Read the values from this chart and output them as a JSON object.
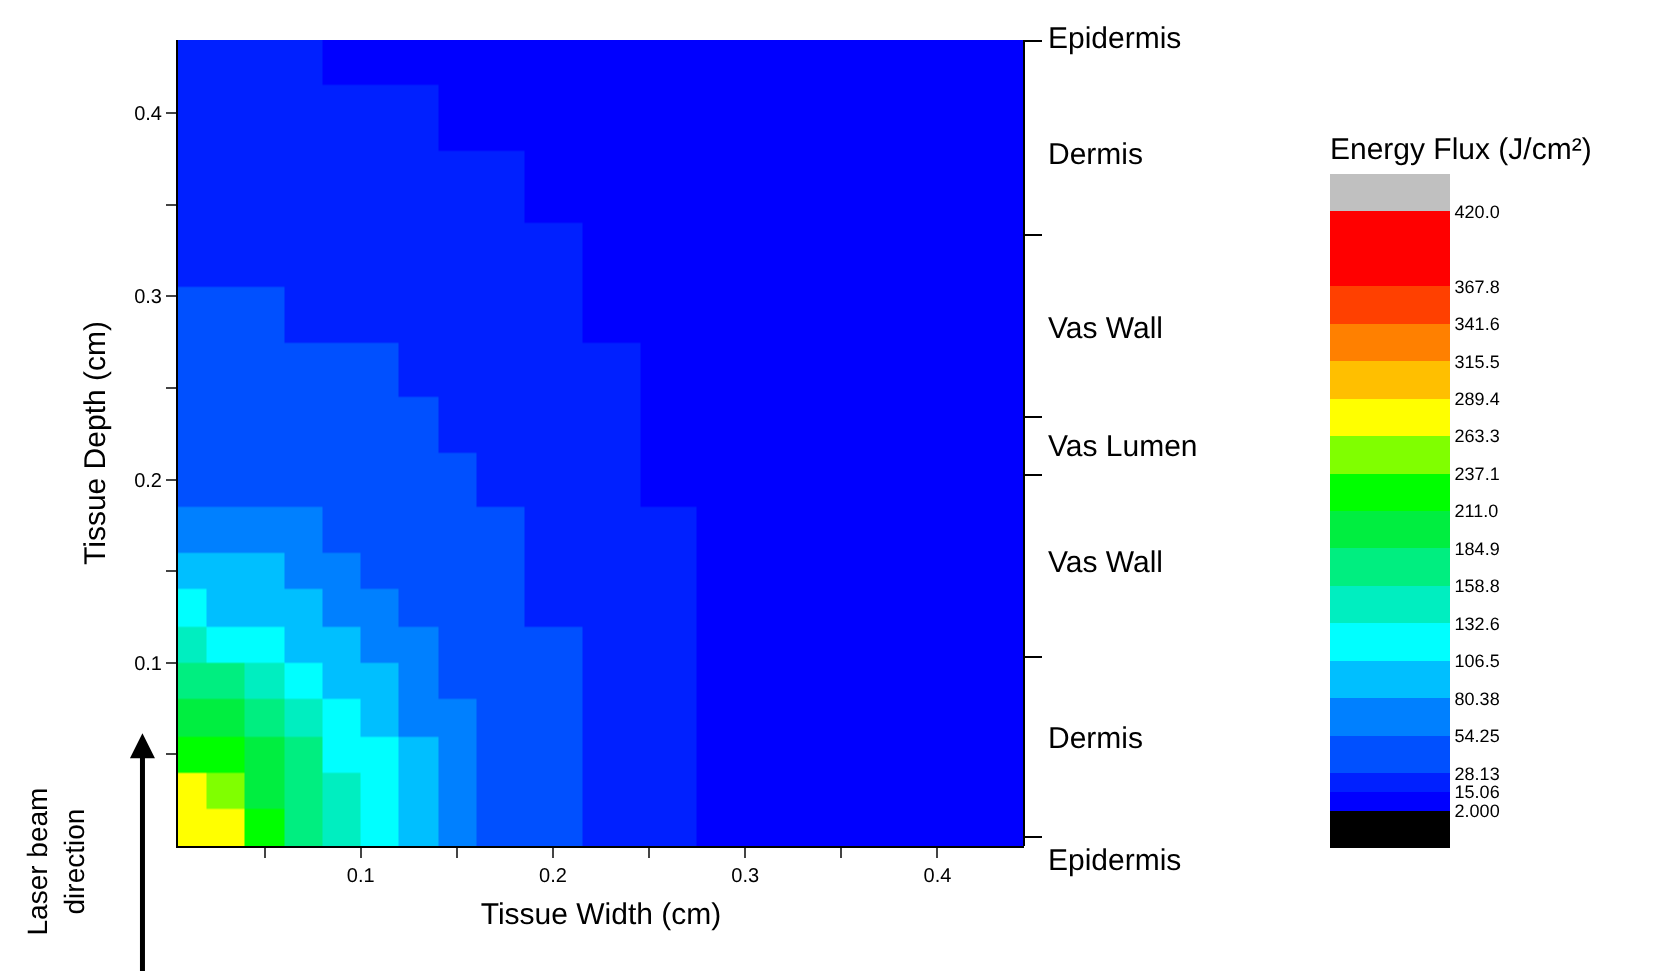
{
  "chart_data": {
    "type": "heatmap",
    "xlabel": "Tissue Width (cm)",
    "ylabel": "Tissue Depth (cm)",
    "clabel": "Energy Flux (J/cm²)",
    "x": [
      0.01,
      0.03,
      0.05,
      0.07,
      0.09,
      0.11,
      0.13,
      0.15,
      0.17,
      0.2,
      0.23,
      0.26,
      0.29,
      0.33,
      0.38,
      0.43
    ],
    "y": [
      0.43,
      0.4,
      0.36,
      0.32,
      0.29,
      0.26,
      0.23,
      0.2,
      0.17,
      0.15,
      0.13,
      0.11,
      0.09,
      0.07,
      0.05,
      0.03,
      0.01
    ],
    "cells": [
      [
        21,
        21,
        21,
        21,
        8,
        8,
        8,
        8,
        8,
        8,
        8,
        8,
        8,
        8,
        8,
        8
      ],
      [
        21,
        21,
        21,
        21,
        21,
        21,
        21,
        8,
        8,
        8,
        8,
        8,
        8,
        8,
        8,
        8
      ],
      [
        21,
        21,
        21,
        21,
        21,
        21,
        21,
        21,
        21,
        8,
        8,
        8,
        8,
        8,
        8,
        8
      ],
      [
        21,
        21,
        21,
        21,
        21,
        21,
        21,
        21,
        21,
        21,
        8,
        8,
        8,
        8,
        8,
        8
      ],
      [
        41,
        41,
        41,
        21,
        21,
        21,
        21,
        21,
        21,
        21,
        8,
        8,
        8,
        8,
        8,
        8
      ],
      [
        41,
        41,
        41,
        41,
        41,
        41,
        21,
        21,
        21,
        21,
        21,
        8,
        8,
        8,
        8,
        8
      ],
      [
        41,
        41,
        41,
        41,
        41,
        41,
        41,
        21,
        21,
        21,
        21,
        8,
        8,
        8,
        8,
        8
      ],
      [
        41,
        41,
        41,
        41,
        41,
        41,
        41,
        41,
        21,
        21,
        21,
        8,
        8,
        8,
        8,
        8
      ],
      [
        67,
        67,
        67,
        67,
        41,
        41,
        41,
        41,
        41,
        21,
        21,
        21,
        8,
        8,
        8,
        8
      ],
      [
        93,
        93,
        93,
        67,
        67,
        41,
        41,
        41,
        41,
        21,
        21,
        21,
        8,
        8,
        8,
        8
      ],
      [
        120,
        93,
        93,
        93,
        67,
        67,
        41,
        41,
        41,
        21,
        21,
        21,
        8,
        8,
        8,
        8
      ],
      [
        146,
        120,
        120,
        93,
        93,
        67,
        67,
        41,
        41,
        41,
        21,
        21,
        8,
        8,
        8,
        8
      ],
      [
        172,
        172,
        146,
        120,
        93,
        93,
        67,
        41,
        41,
        41,
        21,
        21,
        8,
        8,
        8,
        8
      ],
      [
        198,
        198,
        172,
        146,
        120,
        93,
        67,
        67,
        41,
        41,
        21,
        21,
        8,
        8,
        8,
        8
      ],
      [
        224,
        224,
        198,
        172,
        120,
        120,
        93,
        67,
        41,
        41,
        21,
        21,
        8,
        8,
        8,
        8
      ],
      [
        276,
        250,
        198,
        172,
        146,
        120,
        93,
        67,
        41,
        41,
        21,
        21,
        8,
        8,
        8,
        8
      ],
      [
        276,
        276,
        224,
        172,
        146,
        120,
        93,
        67,
        41,
        41,
        21,
        21,
        8,
        8,
        8,
        8
      ]
    ],
    "xlim": [
      0.005,
      0.445
    ],
    "xticks": [
      {
        "value": 0.05,
        "label": null
      },
      0.1,
      {
        "value": 0.15,
        "label": null
      },
      0.2,
      {
        "value": 0.25,
        "label": null
      },
      0.3,
      {
        "value": 0.35,
        "label": null
      },
      0.4
    ],
    "ylim": [
      0,
      0.44
    ],
    "yticks": [
      {
        "value": 0.05,
        "label": null
      },
      0.1,
      {
        "value": 0.15,
        "label": null
      },
      0.2,
      {
        "value": 0.25,
        "label": null
      },
      0.3,
      {
        "value": 0.35,
        "label": null
      },
      0.4
    ],
    "clim": [
      -24,
      446
    ],
    "cticks": [
      {
        "value": 2,
        "label": "2.000"
      },
      {
        "value": 15.06,
        "label": "15.06"
      },
      {
        "value": 28.13,
        "label": "28.13"
      },
      {
        "value": 54.25,
        "label": "54.25"
      },
      {
        "value": 80.38,
        "label": "80.38"
      },
      {
        "value": 106.5,
        "label": "106.5"
      },
      {
        "value": 132.6,
        "label": "132.6"
      },
      {
        "value": 158.8,
        "label": "158.8"
      },
      {
        "value": 184.9,
        "label": "184.9"
      },
      {
        "value": 211,
        "label": "211.0"
      },
      {
        "value": 237.1,
        "label": "237.1"
      },
      {
        "value": 263.3,
        "label": "263.3"
      },
      {
        "value": 289.4,
        "label": "289.4"
      },
      {
        "value": 315.5,
        "label": "315.5"
      },
      {
        "value": 341.6,
        "label": "341.6"
      },
      {
        "value": 367.8,
        "label": "367.8"
      },
      {
        "value": 420,
        "label": "420.0"
      }
    ],
    "colors": [
      "#000000",
      "#0000ff",
      "#0020ff",
      "#0050ff",
      "#0080ff",
      "#00bfff",
      "#00ffff",
      "#00eec0",
      "#00ee80",
      "#00ee40",
      "#00ff00",
      "#80ff00",
      "#ffff00",
      "#ffbf00",
      "#ff8000",
      "#ff4000",
      "#ff0000",
      "#c0c0c0"
    ],
    "annotations": [
      "Laser beam direction",
      "Epidermis",
      "Dermis",
      "Vas Wall",
      "Vas Lumen",
      "Vas Wall",
      "Dermis",
      "Epidermis"
    ]
  }
}
